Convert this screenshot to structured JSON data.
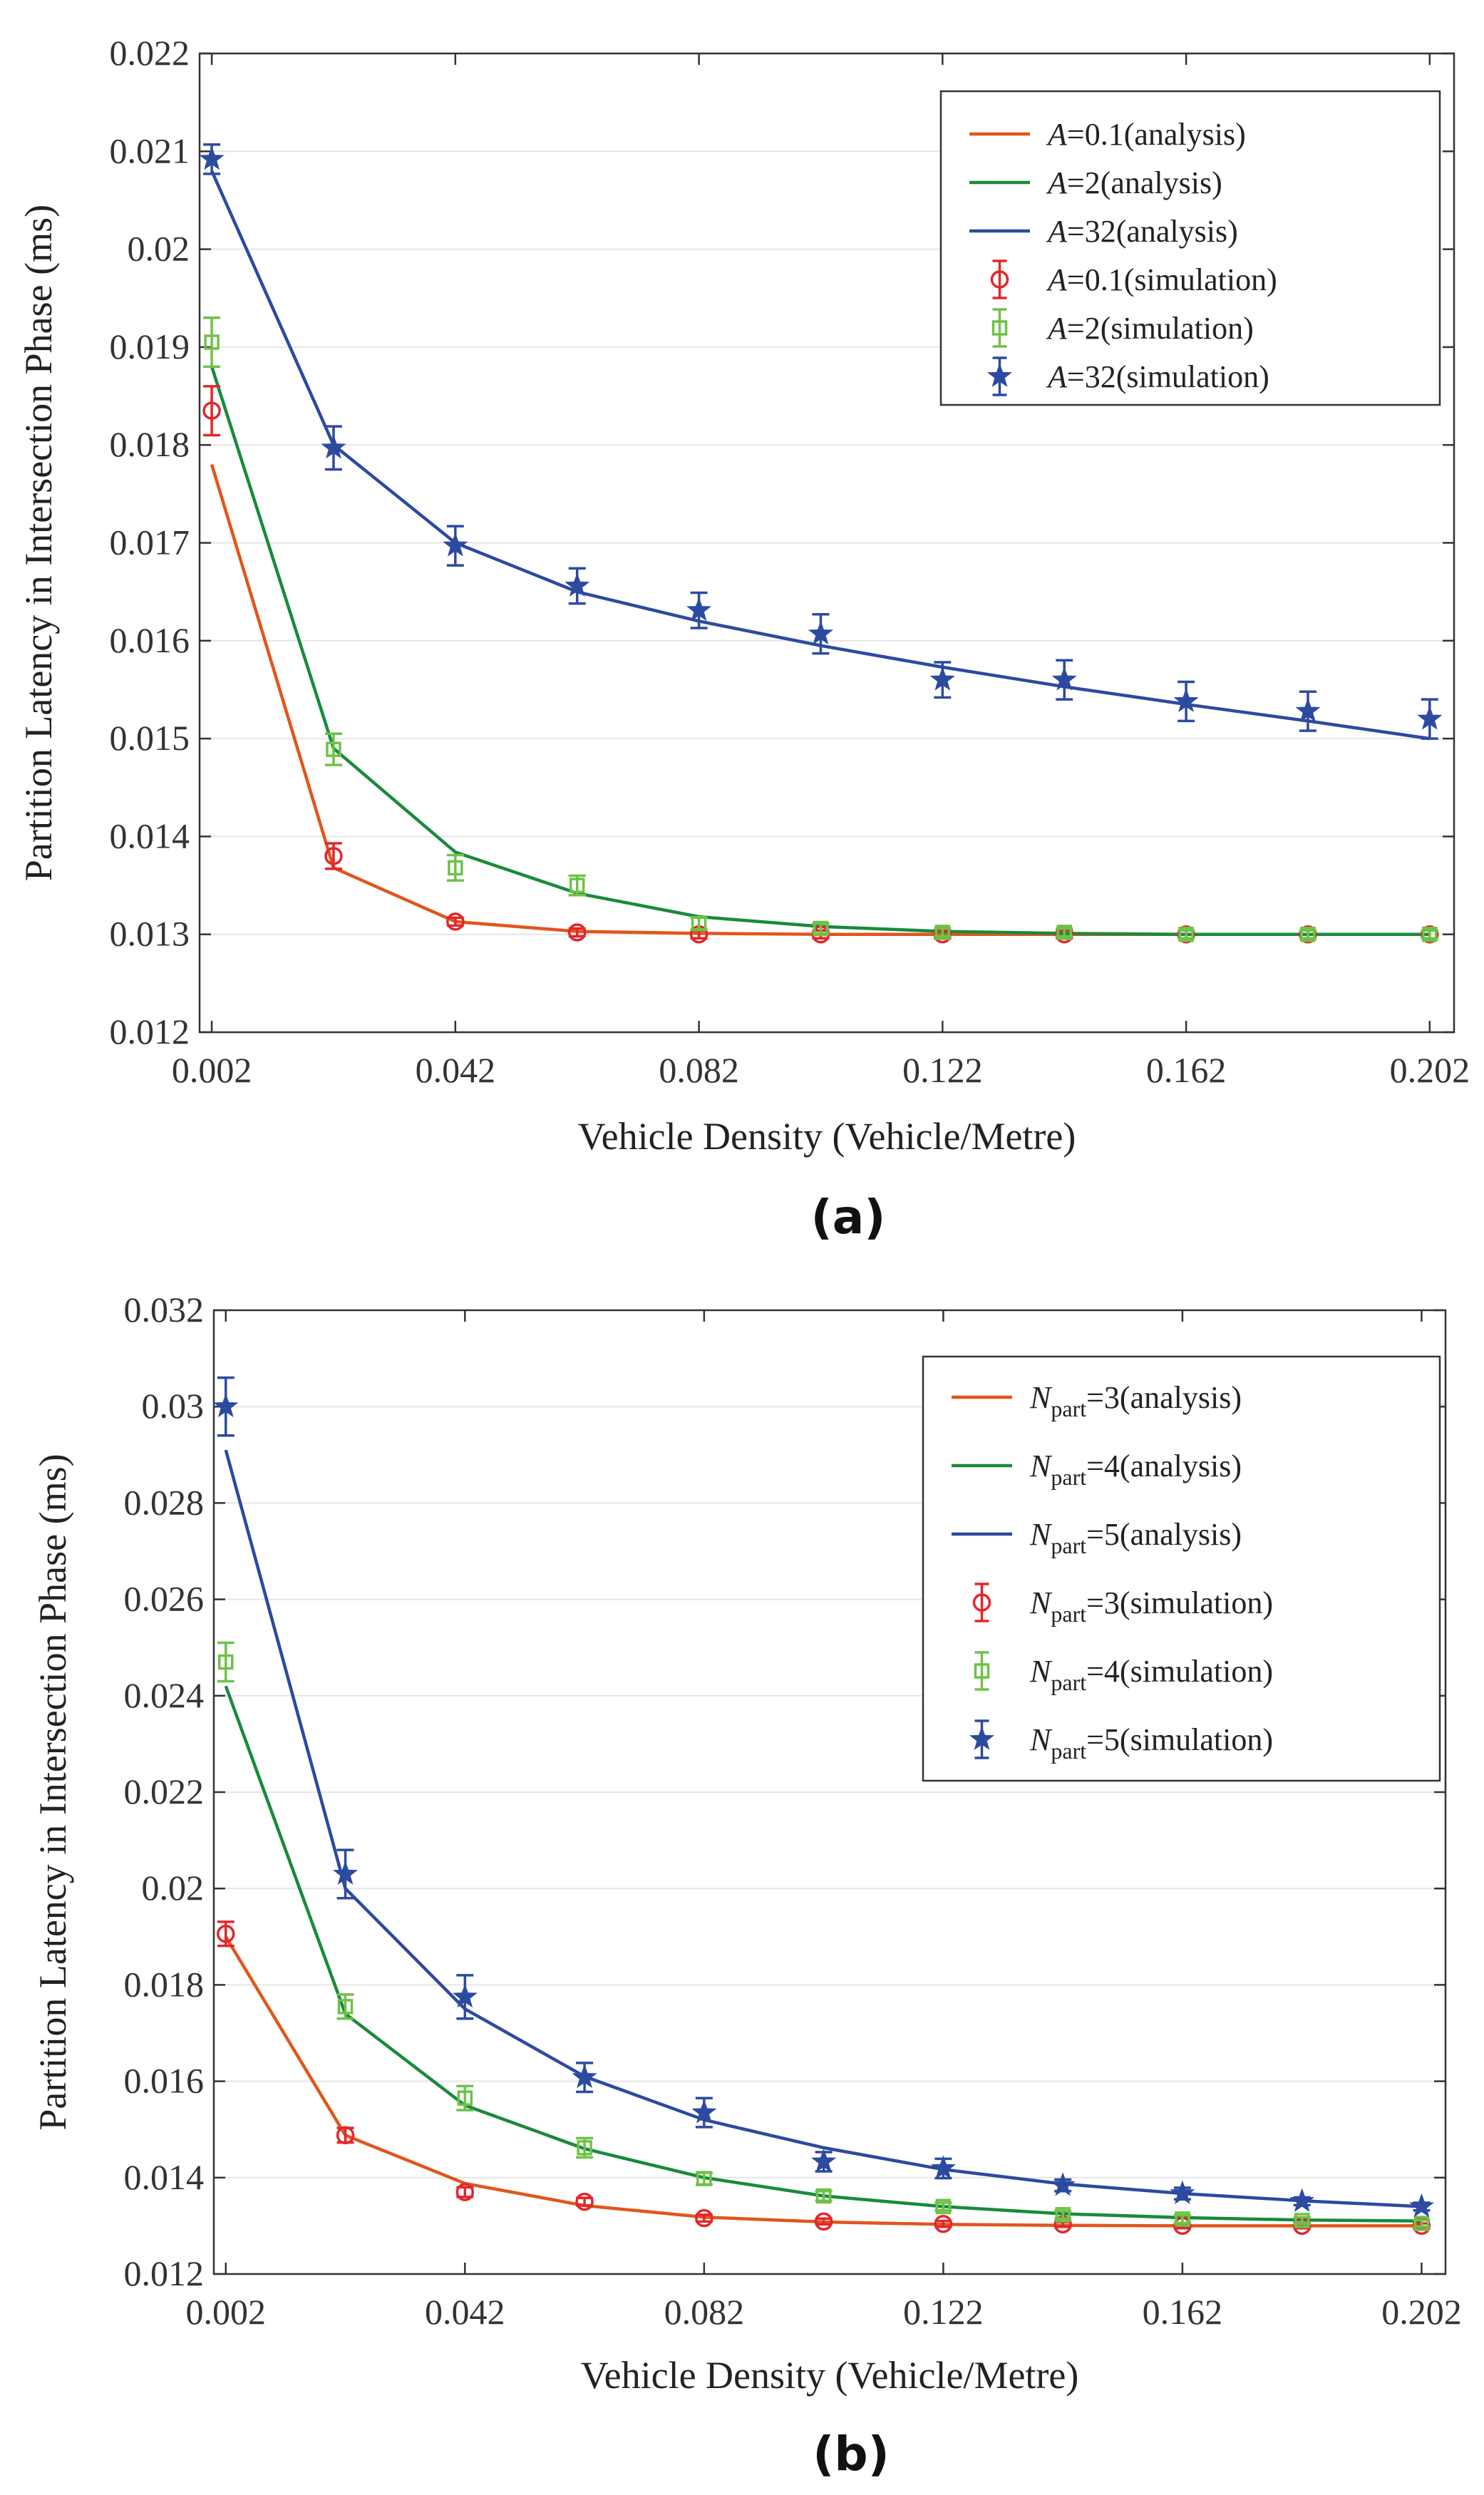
{
  "chart_data": [
    {
      "type": "line",
      "panel_label": "(a)",
      "xlabel": "Vehicle Density (Vehicle/Metre)",
      "ylabel": "Partition Latency in Intersection Phase (ms)",
      "xlim": [
        0.0,
        0.206
      ],
      "ylim": [
        0.012,
        0.022
      ],
      "x_ticks": [
        0.002,
        0.042,
        0.082,
        0.122,
        0.162,
        0.202
      ],
      "x_tick_labels": [
        "0.002",
        "0.042",
        "0.082",
        "0.122",
        "0.162",
        "0.202"
      ],
      "y_ticks": [
        0.012,
        0.013,
        0.014,
        0.015,
        0.016,
        0.017,
        0.018,
        0.019,
        0.02,
        0.021,
        0.022
      ],
      "y_tick_labels": [
        "0.012",
        "0.013",
        "0.014",
        "0.015",
        "0.016",
        "0.017",
        "0.018",
        "0.019",
        "0.02",
        "0.021",
        "0.022"
      ],
      "grid": "horizontal",
      "legend_position": "top-right",
      "x": [
        0.002,
        0.022,
        0.042,
        0.062,
        0.082,
        0.102,
        0.122,
        0.142,
        0.162,
        0.182,
        0.202
      ],
      "series": [
        {
          "name": "=0.1(analysis)",
          "var": "A",
          "sub": "",
          "kind": "line",
          "color": "#e0561c",
          "values": [
            0.0178,
            0.01368,
            0.01313,
            0.01303,
            0.01301,
            0.013,
            0.013,
            0.013,
            0.013,
            0.013,
            0.013
          ]
        },
        {
          "name": "=2(analysis)",
          "var": "A",
          "sub": "",
          "kind": "line",
          "color": "#1a8a3c",
          "values": [
            0.0188,
            0.0149,
            0.01384,
            0.01342,
            0.01318,
            0.01308,
            0.01303,
            0.01301,
            0.013,
            0.013,
            0.013
          ]
        },
        {
          "name": "=32(analysis)",
          "var": "A",
          "sub": "",
          "kind": "line",
          "color": "#2c4aa0",
          "values": [
            0.0208,
            0.018,
            0.017,
            0.0165,
            0.0162,
            0.01595,
            0.01573,
            0.01553,
            0.01535,
            0.01518,
            0.015
          ]
        },
        {
          "name": "=0.1(simulation)",
          "var": "A",
          "sub": "",
          "kind": "marker",
          "marker": "circle",
          "color": "#e3262b",
          "values": [
            0.01835,
            0.0138,
            0.01313,
            0.01302,
            0.013,
            0.013,
            0.013,
            0.013,
            0.013,
            0.013,
            0.013
          ],
          "errors": [
            0.00025,
            0.00013,
            4e-05,
            4e-05,
            4e-05,
            4e-05,
            4e-05,
            4e-05,
            4e-05,
            4e-05,
            4e-05
          ]
        },
        {
          "name": "=2(simulation)",
          "var": "A",
          "sub": "",
          "kind": "marker",
          "marker": "square",
          "color": "#6ec248",
          "values": [
            0.01905,
            0.01489,
            0.01368,
            0.0135,
            0.01311,
            0.01306,
            0.01302,
            0.01302,
            0.013,
            0.013,
            0.013
          ],
          "errors": [
            0.00025,
            0.00016,
            0.00013,
            0.0001,
            6e-05,
            5e-05,
            4e-05,
            4e-05,
            4e-05,
            4e-05,
            4e-05
          ]
        },
        {
          "name": "=32(simulation)",
          "var": "A",
          "sub": "",
          "kind": "marker",
          "marker": "star",
          "color": "#2c4aa0",
          "values": [
            0.02092,
            0.01797,
            0.01697,
            0.01656,
            0.01631,
            0.01607,
            0.0156,
            0.0156,
            0.01538,
            0.01528,
            0.0152
          ],
          "errors": [
            0.00015,
            0.00022,
            0.0002,
            0.00018,
            0.00018,
            0.0002,
            0.00018,
            0.0002,
            0.0002,
            0.0002,
            0.0002
          ]
        }
      ]
    },
    {
      "type": "line",
      "panel_label": "(b)",
      "xlabel": "Vehicle Density (Vehicle/Metre)",
      "ylabel": "Partition Latency in Intersection Phase (ms)",
      "xlim": [
        0.0,
        0.206
      ],
      "ylim": [
        0.012,
        0.032
      ],
      "x_ticks": [
        0.002,
        0.042,
        0.082,
        0.122,
        0.162,
        0.202
      ],
      "x_tick_labels": [
        "0.002",
        "0.042",
        "0.082",
        "0.122",
        "0.162",
        "0.202"
      ],
      "y_ticks": [
        0.012,
        0.014,
        0.016,
        0.018,
        0.02,
        0.022,
        0.024,
        0.026,
        0.028,
        0.03,
        0.032
      ],
      "y_tick_labels": [
        "0.012",
        "0.014",
        "0.016",
        "0.018",
        "0.02",
        "0.022",
        "0.024",
        "0.026",
        "0.028",
        "0.03",
        "0.032"
      ],
      "grid": "horizontal",
      "legend_position": "top-right",
      "x": [
        0.002,
        0.022,
        0.042,
        0.062,
        0.082,
        0.102,
        0.122,
        0.142,
        0.162,
        0.182,
        0.202
      ],
      "series": [
        {
          "name": "=3(analysis)",
          "var": "N",
          "sub": "part",
          "kind": "line",
          "color": "#e0561c",
          "values": [
            0.019,
            0.01488,
            0.01388,
            0.01342,
            0.01318,
            0.01308,
            0.01303,
            0.01301,
            0.013,
            0.013,
            0.013
          ]
        },
        {
          "name": "=4(analysis)",
          "var": "N",
          "sub": "part",
          "kind": "line",
          "color": "#1a8a3c",
          "values": [
            0.0242,
            0.0174,
            0.0155,
            0.0146,
            0.014,
            0.01362,
            0.0134,
            0.01325,
            0.01317,
            0.01312,
            0.0131
          ]
        },
        {
          "name": "=5(analysis)",
          "var": "N",
          "sub": "part",
          "kind": "line",
          "color": "#2c4aa0",
          "values": [
            0.0291,
            0.02,
            0.0175,
            0.0161,
            0.0152,
            0.01462,
            0.01417,
            0.01387,
            0.01367,
            0.01352,
            0.0134
          ]
        },
        {
          "name": "=3(simulation)",
          "var": "N",
          "sub": "part",
          "kind": "marker",
          "marker": "circle",
          "color": "#e3262b",
          "values": [
            0.01906,
            0.01488,
            0.0137,
            0.0135,
            0.01316,
            0.01309,
            0.01304,
            0.01303,
            0.013,
            0.013,
            0.013
          ],
          "errors": [
            0.00025,
            0.00015,
            0.0001,
            8e-05,
            7e-05,
            6e-05,
            6e-05,
            5e-05,
            5e-05,
            5e-05,
            5e-05
          ]
        },
        {
          "name": "=4(simulation)",
          "var": "N",
          "sub": "part",
          "kind": "marker",
          "marker": "square",
          "color": "#6ec248",
          "values": [
            0.0247,
            0.01755,
            0.01565,
            0.01462,
            0.01398,
            0.01362,
            0.0134,
            0.01323,
            0.01314,
            0.01311,
            0.01305
          ],
          "errors": [
            0.0004,
            0.00025,
            0.00025,
            0.0002,
            0.00012,
            0.0001,
            8e-05,
            8e-05,
            8e-05,
            7e-05,
            7e-05
          ]
        },
        {
          "name": "=5(simulation)",
          "var": "N",
          "sub": "part",
          "kind": "marker",
          "marker": "star",
          "color": "#2c4aa0",
          "values": [
            0.03,
            0.0203,
            0.01775,
            0.01608,
            0.01535,
            0.01433,
            0.01419,
            0.01384,
            0.01367,
            0.01351,
            0.0134
          ],
          "errors": [
            0.0006,
            0.0005,
            0.00045,
            0.0003,
            0.0003,
            0.0002,
            0.0002,
            0.00012,
            0.00012,
            8e-05,
            8e-05
          ]
        }
      ]
    }
  ]
}
